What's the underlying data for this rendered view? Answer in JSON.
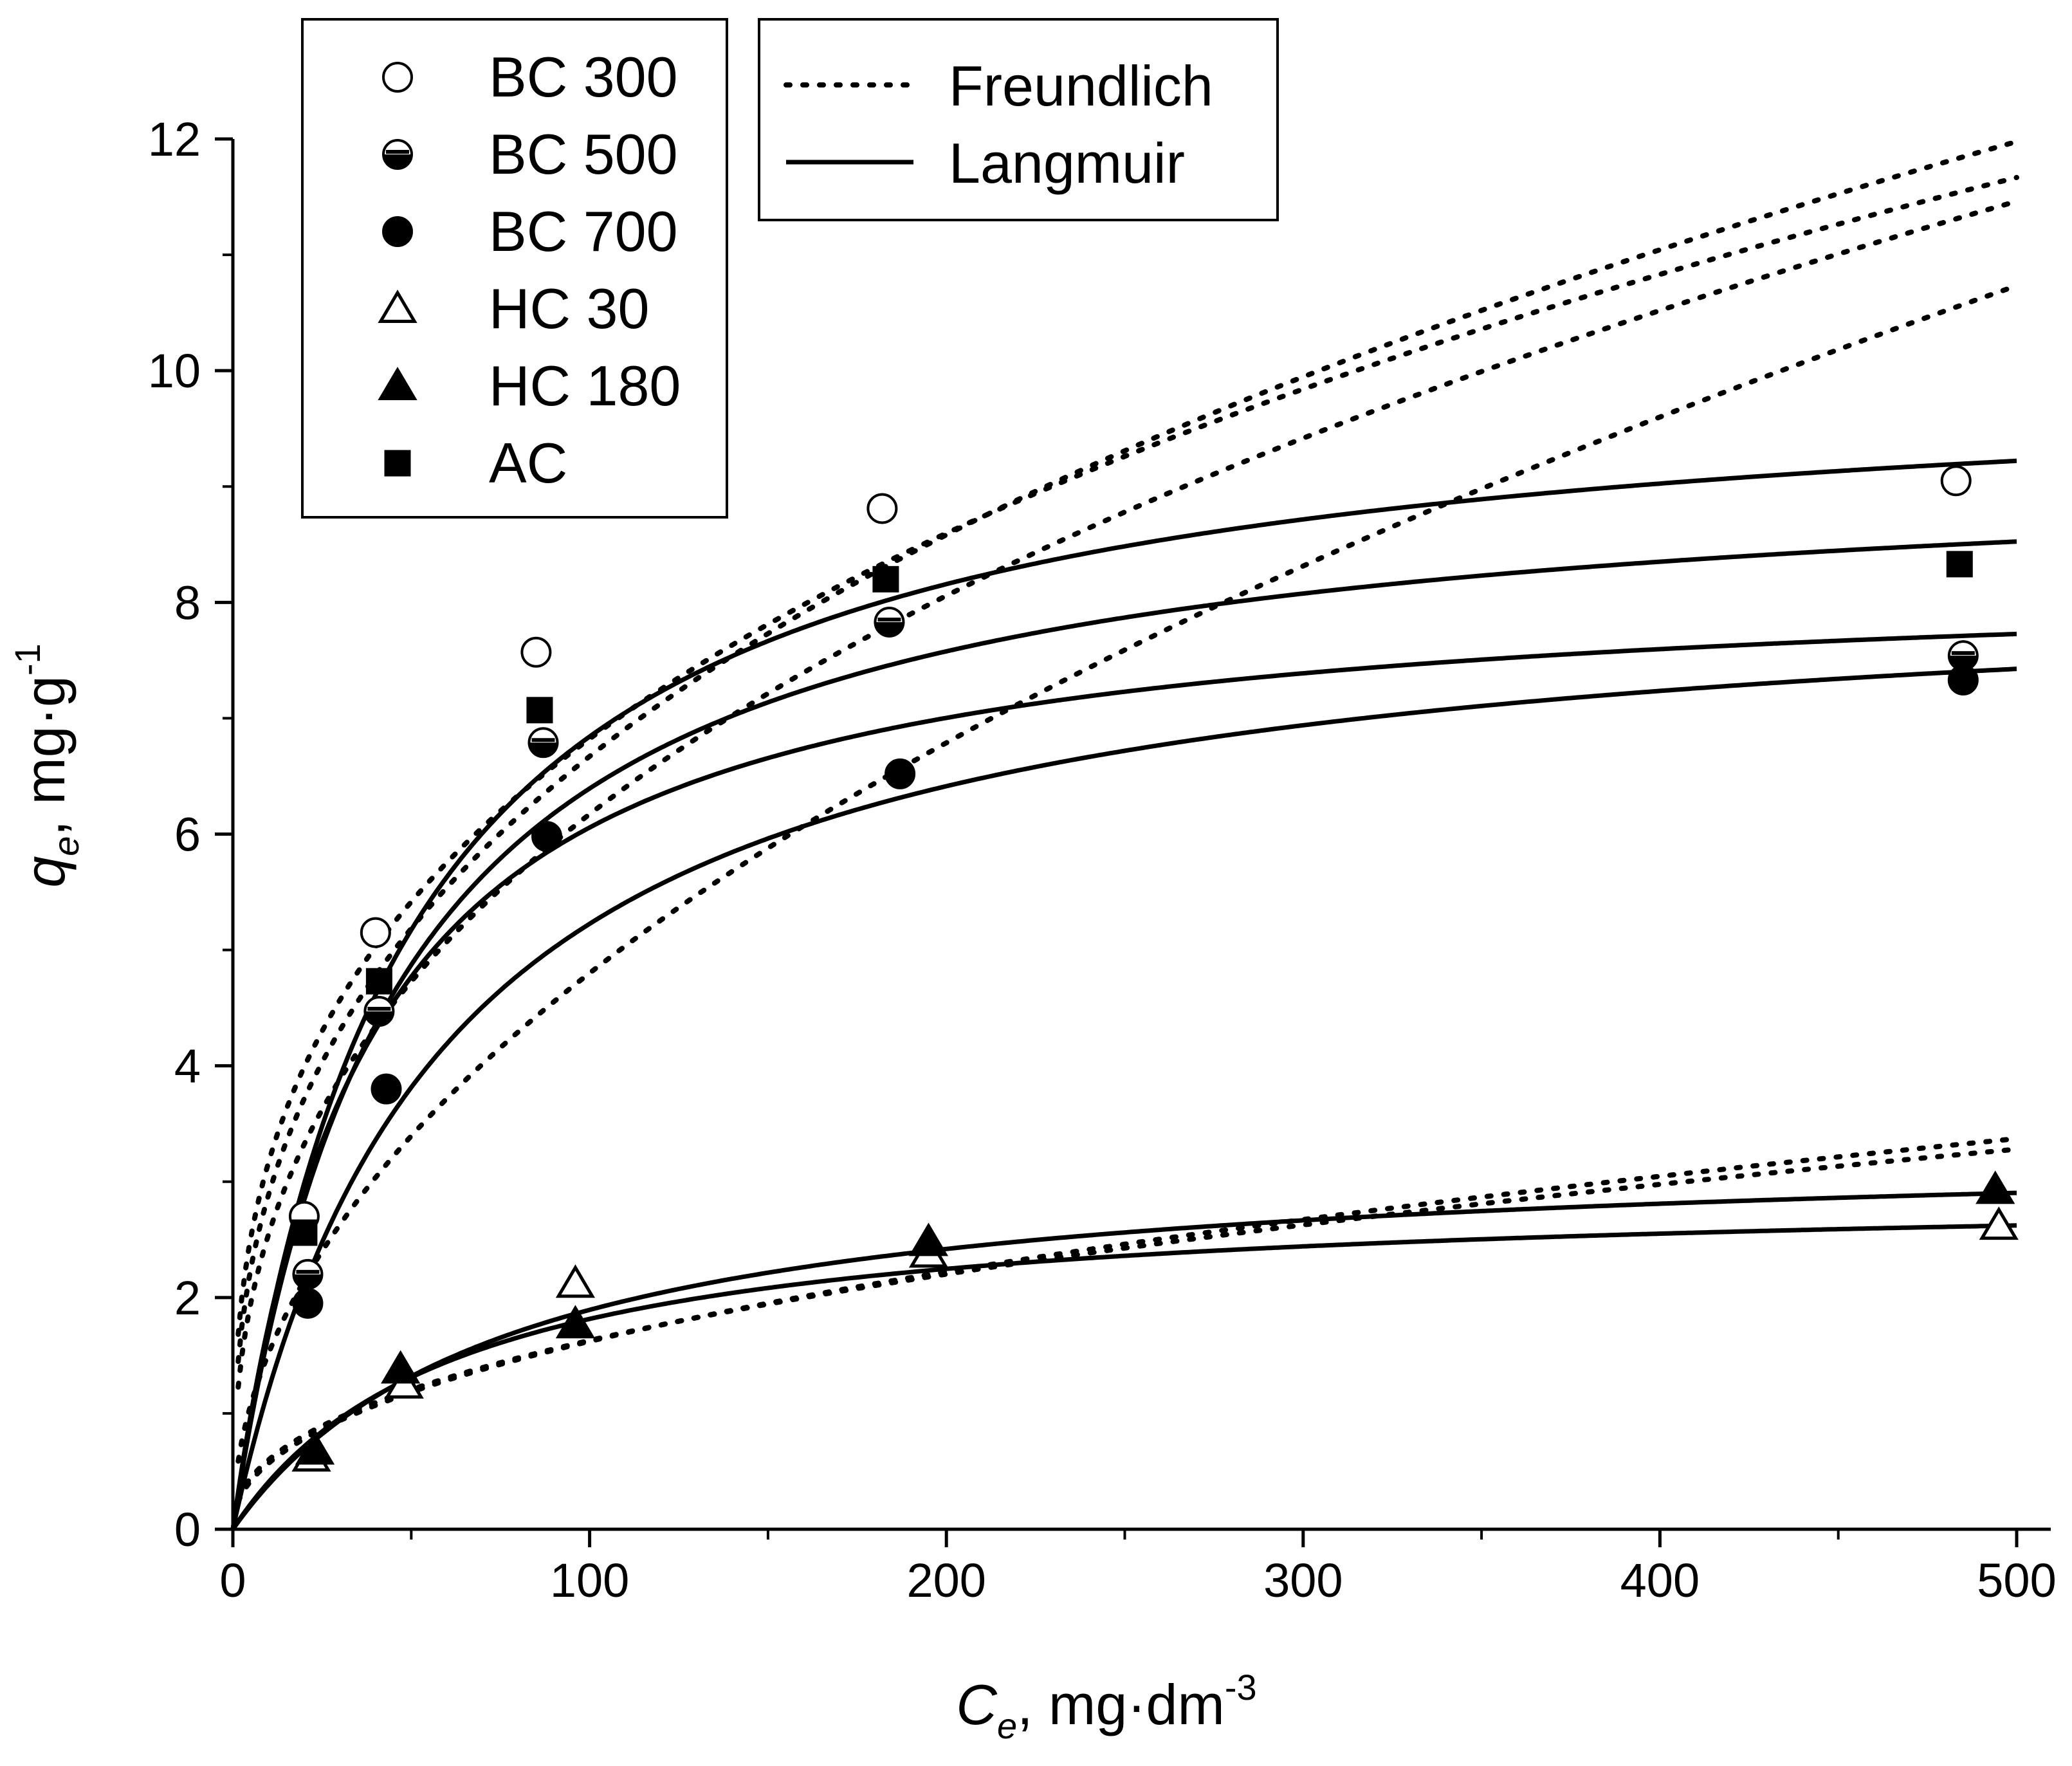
{
  "chart_data": {
    "type": "scatter",
    "title": "",
    "xlabel": {
      "symbol": "C",
      "subscript": "e",
      "unit": ", mg·dm",
      "unit_exponent": "-3"
    },
    "ylabel": {
      "symbol": "q",
      "subscript": "e",
      "unit": ", mg·g",
      "unit_exponent": "-1"
    },
    "xlim": [
      0,
      500
    ],
    "ylim": [
      0,
      12
    ],
    "x_ticks": [
      0,
      100,
      200,
      300,
      400,
      500
    ],
    "x_tick_labels": [
      "0",
      "100",
      "200",
      "300",
      "400",
      "500"
    ],
    "y_ticks": [
      0,
      2,
      4,
      6,
      8,
      10,
      12
    ],
    "y_tick_labels": [
      "0",
      "2",
      "4",
      "6",
      "8",
      "10",
      "12"
    ],
    "x_minor_step": 50,
    "y_minor_step": 1,
    "grid": false,
    "legend_series": {
      "placement": "top-left",
      "entries": [
        "BC 300",
        "BC 500",
        "BC 700",
        "HC 30",
        "HC 180",
        "AC"
      ]
    },
    "legend_models": {
      "placement": "top-center",
      "entries": [
        {
          "label": "Freundlich",
          "style": "dotted"
        },
        {
          "label": "Langmuir",
          "style": "solid"
        }
      ]
    },
    "series": [
      {
        "name": "BC 300",
        "marker": "circle-open",
        "points": [
          [
            20,
            2.7
          ],
          [
            40,
            5.15
          ],
          [
            85,
            7.57
          ],
          [
            182,
            8.81
          ],
          [
            483,
            9.05
          ]
        ],
        "langmuir": {
          "qmax": 10.1,
          "KL": 0.021
        },
        "freundlich": {
          "KF": 1.05,
          "n": 2.6
        }
      },
      {
        "name": "BC 500",
        "marker": "circle-half",
        "points": [
          [
            21,
            2.2
          ],
          [
            41,
            4.47
          ],
          [
            87,
            6.79
          ],
          [
            184,
            7.83
          ],
          [
            485,
            7.54
          ]
        ],
        "langmuir": {
          "qmax": 8.3,
          "KL": 0.027
        },
        "freundlich": {
          "KF": 1.25,
          "n": 2.75
        }
      },
      {
        "name": "BC 700",
        "marker": "circle-filled",
        "points": [
          [
            21,
            1.95
          ],
          [
            43,
            3.8
          ],
          [
            88,
            5.98
          ],
          [
            187,
            6.52
          ],
          [
            485,
            7.33
          ]
        ],
        "langmuir": {
          "qmax": 8.3,
          "KL": 0.017
        },
        "freundlich": {
          "KF": 0.48,
          "n": 2.0
        }
      },
      {
        "name": "HC 30",
        "marker": "triangle-open",
        "points": [
          [
            22,
            0.62
          ],
          [
            48,
            1.25
          ],
          [
            96,
            2.12
          ],
          [
            195,
            2.38
          ],
          [
            495,
            2.62
          ]
        ],
        "langmuir": {
          "qmax": 2.95,
          "KL": 0.016
        },
        "freundlich": {
          "KF": 0.22,
          "n": 2.3
        }
      },
      {
        "name": "HC 180",
        "marker": "triangle-filled",
        "points": [
          [
            23,
            0.68
          ],
          [
            47,
            1.38
          ],
          [
            96,
            1.77
          ],
          [
            195,
            2.48
          ],
          [
            494,
            2.93
          ]
        ],
        "langmuir": {
          "qmax": 3.35,
          "KL": 0.013
        },
        "freundlich": {
          "KF": 0.2,
          "n": 2.2
        }
      },
      {
        "name": "AC",
        "marker": "square-filled",
        "points": [
          [
            20,
            2.56
          ],
          [
            41,
            4.73
          ],
          [
            86,
            7.07
          ],
          [
            183,
            8.2
          ],
          [
            484,
            8.33
          ]
        ],
        "langmuir": {
          "qmax": 9.3,
          "KL": 0.022
        },
        "freundlich": {
          "KF": 1.47,
          "n": 3.0
        }
      }
    ],
    "colors": {
      "stroke": "#000000",
      "background": "#ffffff"
    }
  }
}
